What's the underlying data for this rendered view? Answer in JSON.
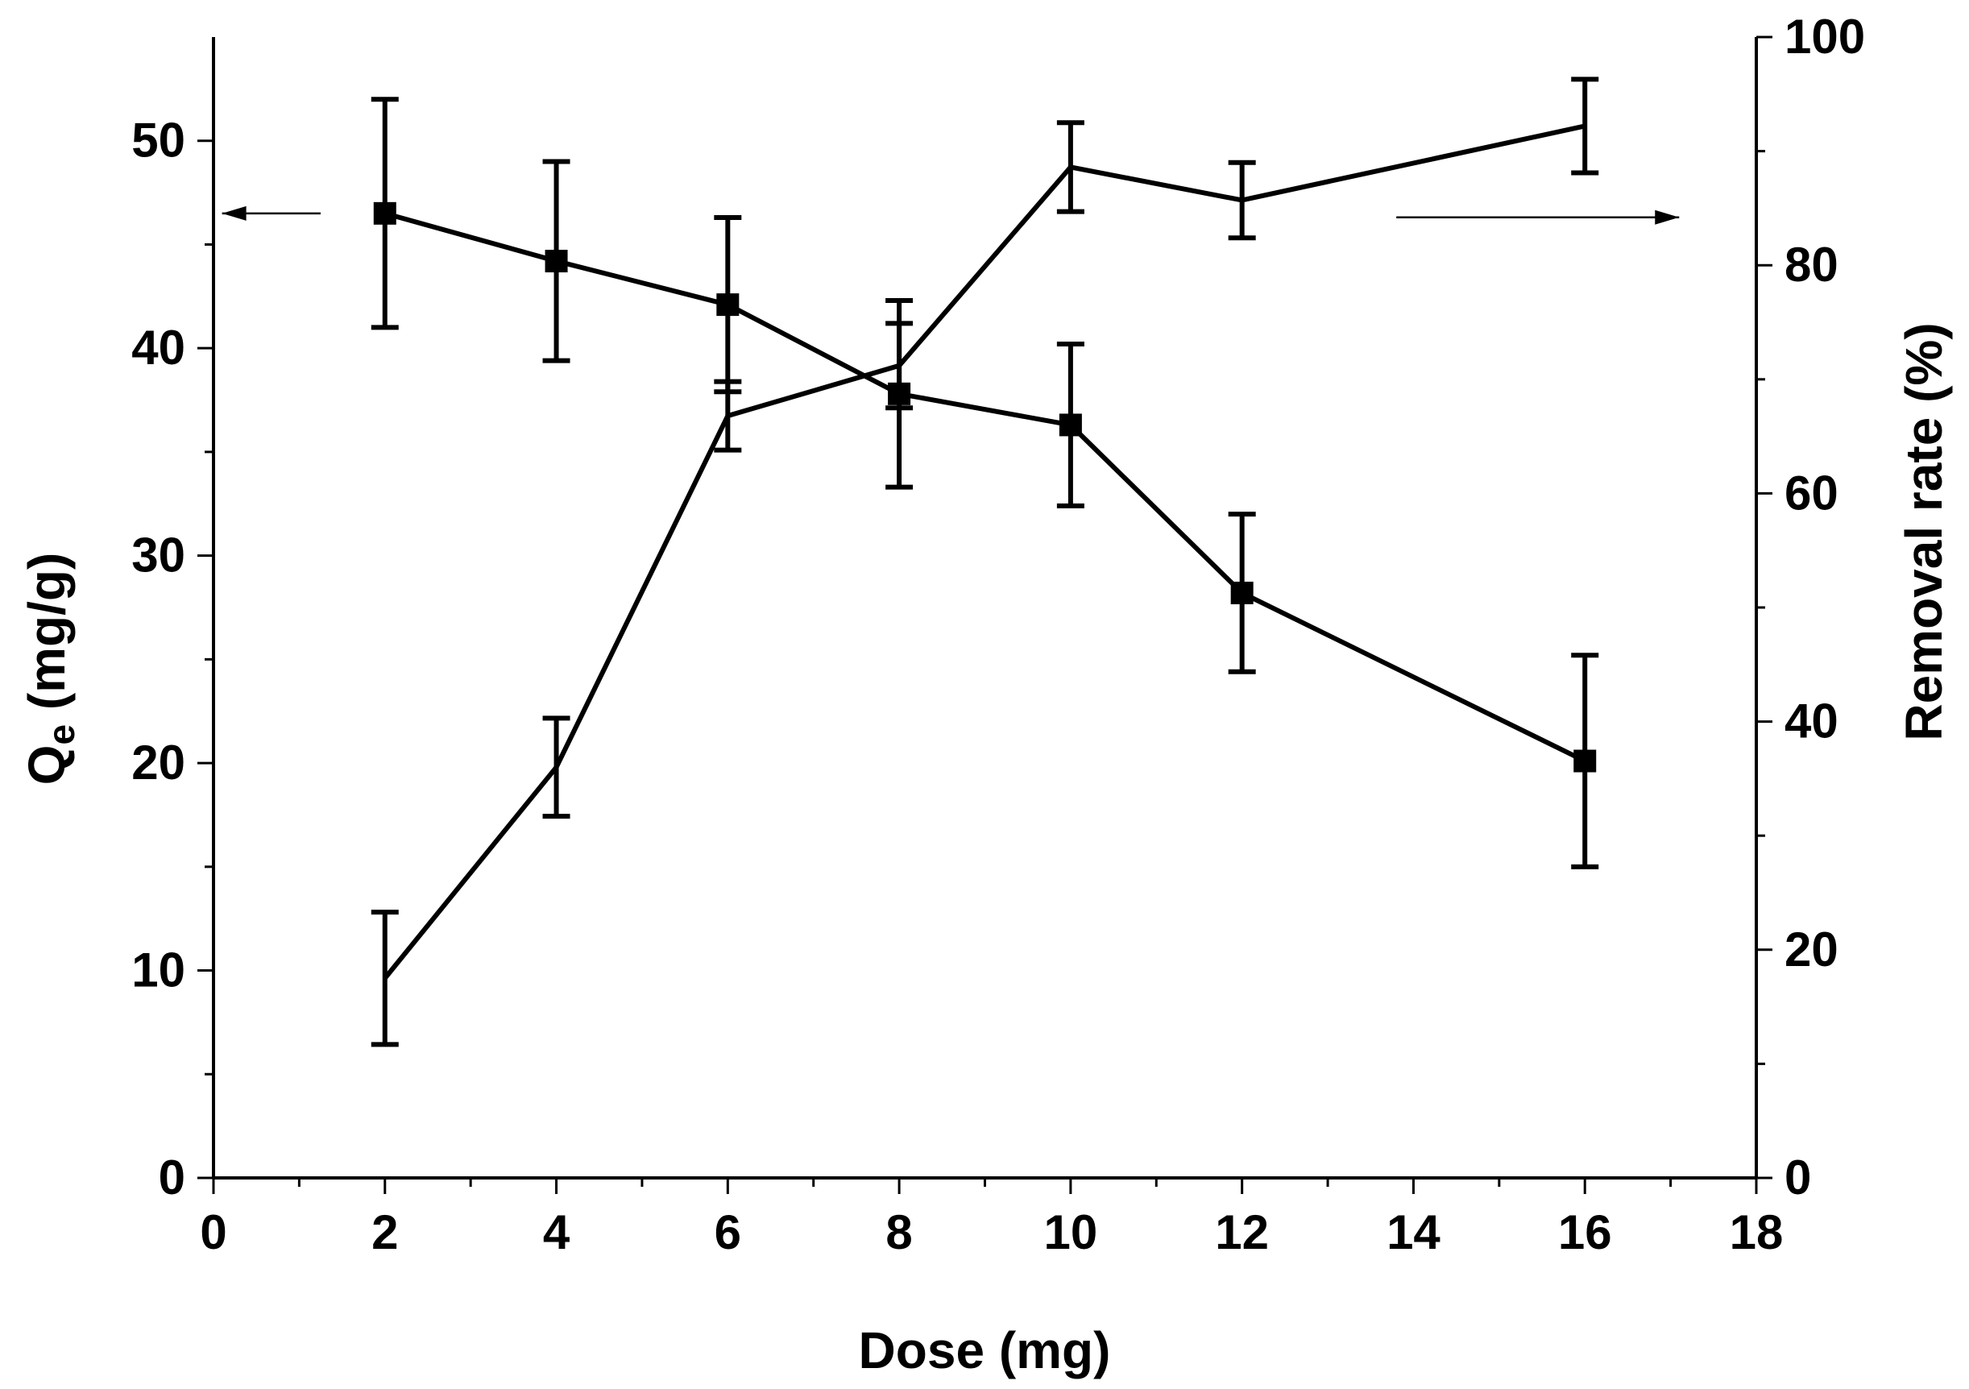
{
  "chart_data": {
    "type": "line",
    "title": "",
    "xlabel": "Dose (mg)",
    "ylabel_left_main": "Q",
    "ylabel_left_sub": "e",
    "ylabel_left_rest": " (mg/g)",
    "ylabel_right": "Removal rate (%)",
    "xlim": [
      0,
      18
    ],
    "ylim_left": [
      0,
      55
    ],
    "ylim_right": [
      0,
      100
    ],
    "x_ticks": [
      0,
      2,
      4,
      6,
      8,
      10,
      12,
      14,
      16,
      18
    ],
    "x_minor_ticks": [
      1,
      3,
      5,
      7,
      9,
      11,
      13,
      15,
      17
    ],
    "y_left_ticks": [
      0,
      10,
      20,
      30,
      40,
      50
    ],
    "y_left_minor_ticks": [
      5,
      15,
      25,
      35,
      45
    ],
    "y_right_ticks": [
      0,
      20,
      40,
      60,
      80,
      100
    ],
    "y_right_minor_ticks": [
      10,
      30,
      50,
      70,
      90
    ],
    "grid": false,
    "series": [
      {
        "name": "Qe",
        "axis": "left",
        "marker": "square",
        "x": [
          2,
          4,
          6,
          8,
          10,
          12,
          16
        ],
        "values": [
          46.5,
          44.2,
          42.1,
          37.8,
          36.3,
          28.2,
          20.1
        ],
        "errors": [
          5.5,
          4.8,
          4.2,
          4.5,
          3.9,
          3.8,
          5.1
        ]
      },
      {
        "name": "Removal rate",
        "axis": "right",
        "marker": "none",
        "x": [
          2,
          4,
          6,
          8,
          10,
          12,
          16
        ],
        "values": [
          17.5,
          36.0,
          66.8,
          71.2,
          88.6,
          85.7,
          92.2
        ],
        "errors": [
          5.8,
          4.3,
          3.0,
          3.7,
          3.9,
          3.3,
          4.1
        ]
      }
    ],
    "annotations": [
      {
        "type": "arrow",
        "direction": "left",
        "points_to": "left axis",
        "x_from": 1.25,
        "x_to": 0.1,
        "y_left": 46.5
      },
      {
        "type": "arrow",
        "direction": "right",
        "points_to": "right axis",
        "x_from": 13.8,
        "x_to": 17.1,
        "y_right": 84.2
      }
    ]
  }
}
